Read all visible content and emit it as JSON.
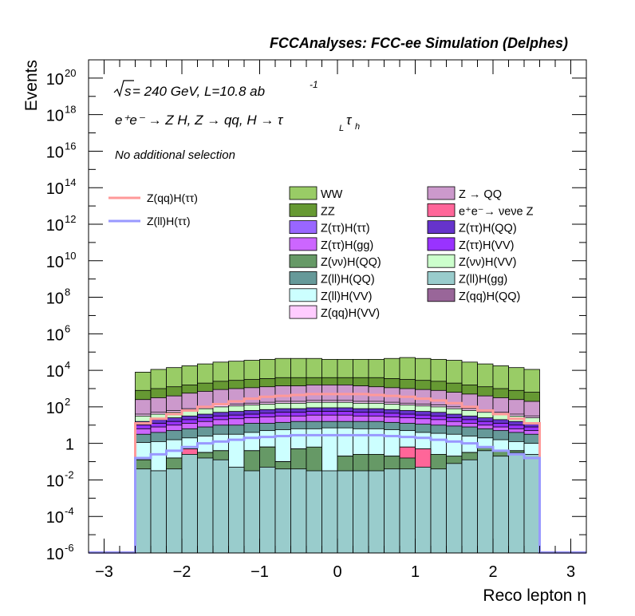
{
  "chart_data": {
    "type": "bar",
    "title": "FCCAnalyses: FCC-ee Simulation (Delphes)",
    "annotations": {
      "sqrt_s_prefix": "s",
      "line1": " = 240 GeV, L=10.8 ab",
      "line1_sup": "-1",
      "line2": "e⁺e⁻ → Z H, Z → qq, H → τ",
      "line2_sub1": "L",
      "line2_tau": "τ",
      "line2_sub2": "h",
      "line3": "No additional selection"
    },
    "xlabel": "Reco lepton η",
    "ylabel": "Events",
    "yscale": "log",
    "xlim": [
      -3.2,
      3.2
    ],
    "ylim_exp": [
      -6,
      21
    ],
    "x_ticks": [
      -3,
      -2,
      -1,
      0,
      1,
      2,
      3
    ],
    "x_tick_labels": [
      "−3",
      "−2",
      "−1",
      "0",
      "1",
      "2",
      "3"
    ],
    "y_ticks": [
      {
        "exp": -6,
        "label": "10",
        "sup": "-6"
      },
      {
        "exp": -4,
        "label": "10",
        "sup": "-4"
      },
      {
        "exp": -2,
        "label": "10",
        "sup": "-2"
      },
      {
        "exp": 0,
        "label": "1",
        "sup": ""
      },
      {
        "exp": 2,
        "label": "10",
        "sup": "2"
      },
      {
        "exp": 4,
        "label": "10",
        "sup": "4"
      },
      {
        "exp": 6,
        "label": "10",
        "sup": "6"
      },
      {
        "exp": 8,
        "label": "10",
        "sup": "8"
      },
      {
        "exp": 10,
        "label": "10",
        "sup": "10"
      },
      {
        "exp": 12,
        "label": "10",
        "sup": "12"
      },
      {
        "exp": 14,
        "label": "10",
        "sup": "14"
      },
      {
        "exp": 16,
        "label": "10",
        "sup": "16"
      },
      {
        "exp": 18,
        "label": "10",
        "sup": "18"
      },
      {
        "exp": 20,
        "label": "10",
        "sup": "20"
      }
    ],
    "bins": {
      "start": -2.6,
      "width": 0.2,
      "count": 26
    },
    "stack_floor_exp": -6,
    "stack": [
      {
        "name": "Z(ll)H(gg)",
        "color": "#99cccc",
        "top_exp": [
          -1.4,
          -1.5,
          -1.4,
          -0.6,
          -0.8,
          -0.9,
          -1.3,
          -1.5,
          -1.3,
          -1.4,
          -1.4,
          -1.5,
          -1.5,
          -1.5,
          -1.5,
          -1.5,
          -1.4,
          -1.4,
          -1.3,
          -1.4,
          -1.1,
          -0.9,
          -0.4,
          -0.7,
          -0.5,
          -0.6
        ]
      },
      {
        "name": "Z(νν)H(QQ)",
        "color": "#669966",
        "top_exp": [
          -0.9,
          -1.5,
          -0.8,
          -0.6,
          -0.5,
          -0.4,
          -1.3,
          -0.4,
          -0.2,
          -1.0,
          -0.3,
          -0.2,
          -3.6,
          -0.7,
          -0.6,
          -0.6,
          -0.7,
          -0.8,
          -2.0,
          -0.6,
          -0.7,
          -0.5,
          -0.2,
          -0.4,
          -0.4,
          -0.6
        ]
      },
      {
        "name": "e⁺e⁻ → νeνe Z",
        "color": "#ff6699",
        "top_exp": [
          -0.9,
          -1.5,
          -0.8,
          -0.3,
          -0.5,
          -0.4,
          -1.3,
          -0.4,
          -0.2,
          -1.0,
          -0.3,
          -1.1,
          -3.6,
          -0.7,
          -0.6,
          -0.6,
          -0.7,
          -0.2,
          -0.3,
          -0.6,
          -0.7,
          -0.5,
          -0.2,
          -0.4,
          -0.4,
          -0.6
        ]
      },
      {
        "name": "Z(qq)H(QQ)",
        "color": "#996699",
        "top_exp": [
          -0.9,
          -1.5,
          -0.8,
          -0.3,
          -0.5,
          -0.4,
          -1.3,
          -0.4,
          -0.2,
          -1.0,
          -0.3,
          -1.1,
          -3.6,
          -0.7,
          -0.6,
          -0.6,
          -0.7,
          -0.2,
          -0.3,
          -0.6,
          -3.9,
          -0.5,
          -0.2,
          -0.4,
          -0.4,
          -0.6
        ]
      },
      {
        "name": "Z(ll)H(VV)",
        "color": "#ccffff",
        "top_exp": [
          0.05,
          0.1,
          0.2,
          0.3,
          0.4,
          0.5,
          0.5,
          0.6,
          0.7,
          0.75,
          0.8,
          0.8,
          0.85,
          0.85,
          0.8,
          0.8,
          0.75,
          0.7,
          0.6,
          0.55,
          0.5,
          0.4,
          0.3,
          0.2,
          0.1,
          0.0
        ]
      },
      {
        "name": "Z(ll)H(QQ)",
        "color": "#669999",
        "top_exp": [
          0.5,
          0.6,
          0.7,
          0.8,
          0.9,
          1.0,
          1.0,
          1.1,
          1.1,
          1.15,
          1.2,
          1.2,
          1.2,
          1.2,
          1.2,
          1.2,
          1.15,
          1.1,
          1.05,
          1.0,
          0.95,
          0.9,
          0.8,
          0.7,
          0.6,
          0.5
        ]
      },
      {
        "name": "Z(ττ)H(gg)",
        "color": "#cc66ff",
        "top_exp": [
          0.8,
          0.9,
          1.0,
          1.1,
          1.2,
          1.3,
          1.35,
          1.4,
          1.45,
          1.5,
          1.5,
          1.55,
          1.55,
          1.55,
          1.5,
          1.5,
          1.45,
          1.4,
          1.35,
          1.3,
          1.2,
          1.1,
          1.0,
          0.9,
          0.8,
          0.7
        ]
      },
      {
        "name": "Z(ττ)H(VV)",
        "color": "#9933ff",
        "top_exp": [
          1.0,
          1.1,
          1.2,
          1.3,
          1.4,
          1.5,
          1.55,
          1.6,
          1.65,
          1.7,
          1.7,
          1.75,
          1.75,
          1.75,
          1.7,
          1.7,
          1.65,
          1.6,
          1.55,
          1.5,
          1.4,
          1.3,
          1.2,
          1.1,
          1.0,
          0.9
        ]
      },
      {
        "name": "Z(ττ)H(QQ)",
        "color": "#6633cc",
        "top_exp": [
          1.2,
          1.3,
          1.4,
          1.5,
          1.6,
          1.7,
          1.75,
          1.8,
          1.85,
          1.9,
          1.9,
          1.95,
          1.95,
          1.95,
          1.9,
          1.9,
          1.85,
          1.8,
          1.75,
          1.7,
          1.6,
          1.5,
          1.4,
          1.3,
          1.2,
          1.1
        ]
      },
      {
        "name": "Z(νν)H(VV)",
        "color": "#ccffcc",
        "top_exp": [
          1.5,
          1.6,
          1.7,
          1.8,
          1.9,
          2.0,
          2.05,
          2.1,
          2.15,
          2.2,
          2.2,
          2.25,
          2.25,
          2.25,
          2.2,
          2.2,
          2.15,
          2.1,
          2.05,
          2.0,
          1.9,
          1.8,
          1.7,
          1.6,
          1.5,
          1.4
        ]
      },
      {
        "name": "Z(qq)H(VV)",
        "color": "#ffccff",
        "top_exp": [
          1.6,
          1.7,
          1.8,
          1.9,
          2.0,
          2.1,
          2.15,
          2.2,
          2.25,
          2.3,
          2.3,
          2.35,
          2.35,
          2.35,
          2.3,
          2.3,
          2.25,
          2.2,
          2.15,
          2.1,
          2.0,
          1.9,
          1.8,
          1.7,
          1.6,
          1.5
        ]
      },
      {
        "name": "Z → QQ",
        "color": "#cc99cc",
        "top_exp": [
          2.4,
          2.5,
          2.6,
          2.75,
          2.85,
          2.95,
          3.0,
          3.05,
          3.1,
          3.15,
          3.15,
          3.2,
          3.2,
          3.2,
          3.15,
          3.1,
          3.05,
          3.0,
          2.95,
          2.9,
          2.8,
          2.7,
          2.6,
          2.5,
          2.4,
          2.3
        ]
      },
      {
        "name": "ZZ",
        "color": "#669933",
        "top_exp": [
          2.9,
          3.0,
          3.1,
          3.2,
          3.3,
          3.4,
          3.45,
          3.5,
          3.55,
          3.6,
          3.6,
          3.6,
          3.6,
          3.6,
          3.6,
          3.6,
          3.55,
          3.5,
          3.45,
          3.4,
          3.3,
          3.2,
          3.1,
          3.0,
          2.9,
          2.8
        ]
      },
      {
        "name": "WW",
        "color": "#99cc66",
        "top_exp": [
          3.9,
          4.05,
          4.15,
          4.25,
          4.35,
          4.45,
          4.5,
          4.55,
          4.6,
          4.65,
          4.65,
          4.65,
          4.6,
          4.6,
          4.6,
          4.6,
          4.65,
          4.7,
          4.65,
          4.6,
          4.55,
          4.45,
          4.35,
          4.25,
          4.15,
          4.05
        ]
      }
    ],
    "overlays": [
      {
        "name": "Z(qq)H(ττ)",
        "color": "#ff9999",
        "level_exp": [
          1.1,
          1.35,
          1.6,
          1.8,
          2.0,
          2.15,
          2.3,
          2.45,
          2.55,
          2.6,
          2.65,
          2.7,
          2.7,
          2.7,
          2.7,
          2.65,
          2.6,
          2.55,
          2.45,
          2.35,
          2.2,
          2.0,
          1.8,
          1.6,
          1.35,
          1.1
        ]
      },
      {
        "name": "Z(ll)H(ττ)",
        "color": "#9999ff",
        "level_exp": [
          -0.8,
          -0.6,
          -0.4,
          -0.2,
          0.0,
          0.1,
          0.2,
          0.3,
          0.35,
          0.4,
          0.45,
          0.45,
          0.45,
          0.45,
          0.45,
          0.45,
          0.4,
          0.35,
          0.3,
          0.2,
          0.1,
          0.0,
          -0.2,
          -0.4,
          -0.6,
          -0.8
        ]
      }
    ],
    "legend_left": [
      {
        "label": "Z(qq)H(ττ)",
        "color": "#ff9999"
      },
      {
        "label": "Z(ll)H(ττ)",
        "color": "#9999ff"
      }
    ],
    "legend_col1": [
      {
        "label": "WW",
        "color": "#99cc66"
      },
      {
        "label": "ZZ",
        "color": "#669933"
      },
      {
        "label": "Z(ττ)H(ττ)",
        "color": "#9966ff"
      },
      {
        "label": "Z(ττ)H(gg)",
        "color": "#cc66ff"
      },
      {
        "label": "Z(νν)H(QQ)",
        "color": "#669966"
      },
      {
        "label": "Z(ll)H(QQ)",
        "color": "#669999"
      },
      {
        "label": "Z(ll)H(VV)",
        "color": "#ccffff"
      },
      {
        "label": "Z(qq)H(VV)",
        "color": "#ffccff"
      }
    ],
    "legend_col2": [
      {
        "label": "Z → QQ",
        "color": "#cc99cc"
      },
      {
        "label": "e⁺e⁻→ νeνe Z",
        "color": "#ff6699"
      },
      {
        "label": "Z(ττ)H(QQ)",
        "color": "#6633cc"
      },
      {
        "label": "Z(ττ)H(VV)",
        "color": "#9933ff"
      },
      {
        "label": "Z(νν)H(VV)",
        "color": "#ccffcc"
      },
      {
        "label": "Z(ll)H(gg)",
        "color": "#99cccc"
      },
      {
        "label": "Z(qq)H(QQ)",
        "color": "#996699"
      }
    ]
  }
}
